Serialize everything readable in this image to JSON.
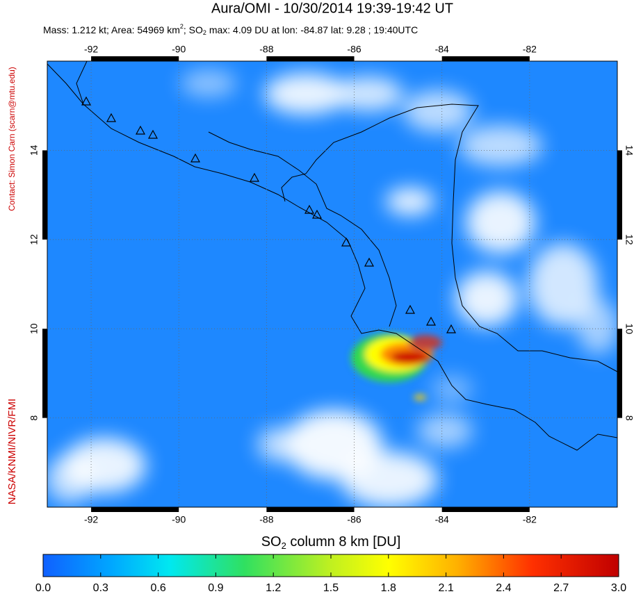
{
  "header": {
    "title": "Aura/OMI - 10/30/2014 19:39-19:42 UT",
    "subtitle": [
      "Mass: 1.212 kt; Area: 54969 km",
      "2",
      "; SO",
      "2",
      " max: 4.09 DU at lon: -84.87 lat: 9.28 ; 19:40UTC"
    ]
  },
  "side": {
    "contact": "Contact: Simon Carn (scarn@mtu.edu)",
    "credit": "NASA/KNMI/NIVR/FMI"
  },
  "map": {
    "xlim": [
      -93,
      -80
    ],
    "ylim": [
      6,
      16
    ],
    "xticks": [
      -92,
      -90,
      -88,
      -86,
      -84,
      -82
    ],
    "yticks": [
      14,
      12,
      10,
      8
    ],
    "grid": true
  },
  "colorbar": {
    "title": [
      "SO",
      "2",
      " column 8 km [DU]"
    ],
    "lim": [
      0,
      3
    ],
    "ticks": [
      {
        "value": 0,
        "label": "0.0"
      },
      {
        "value": 0.3,
        "label": "0.3"
      },
      {
        "value": 0.6,
        "label": "0.6"
      },
      {
        "value": 0.9,
        "label": "0.9"
      },
      {
        "value": 1.2,
        "label": "1.2"
      },
      {
        "value": 1.5,
        "label": "1.5"
      },
      {
        "value": 1.8,
        "label": "1.8"
      },
      {
        "value": 2.1,
        "label": "2.1"
      },
      {
        "value": 2.4,
        "label": "2.4"
      },
      {
        "value": 2.7,
        "label": "2.7"
      },
      {
        "value": 3,
        "label": "3.0"
      }
    ]
  }
}
